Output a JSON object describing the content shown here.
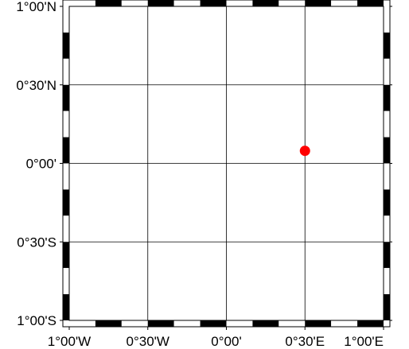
{
  "map": {
    "projection": "cartesian",
    "lon_range": [
      -1,
      1
    ],
    "lat_range": [
      -1,
      1
    ],
    "gridlines": true,
    "frame": "fancy-checkerboard",
    "grid_lon": [
      -1,
      -0.5,
      0,
      0.5,
      1
    ],
    "grid_lat": [
      -1,
      -0.5,
      0,
      0.5,
      1
    ],
    "x_tick_labels": [
      "1°00'W",
      "0°30'W",
      "0°00'",
      "0°30'E",
      "1°00'E"
    ],
    "y_tick_labels": [
      "1°00'S",
      "0°30'S",
      "0°00'",
      "0°30'N",
      "1°00'N"
    ],
    "points": [
      {
        "lon": 0.5,
        "lat": 0.08,
        "color": "#ff0000"
      }
    ],
    "colors": {
      "frame": "#000000",
      "grid": "#000000",
      "point": "#ff0000"
    }
  }
}
